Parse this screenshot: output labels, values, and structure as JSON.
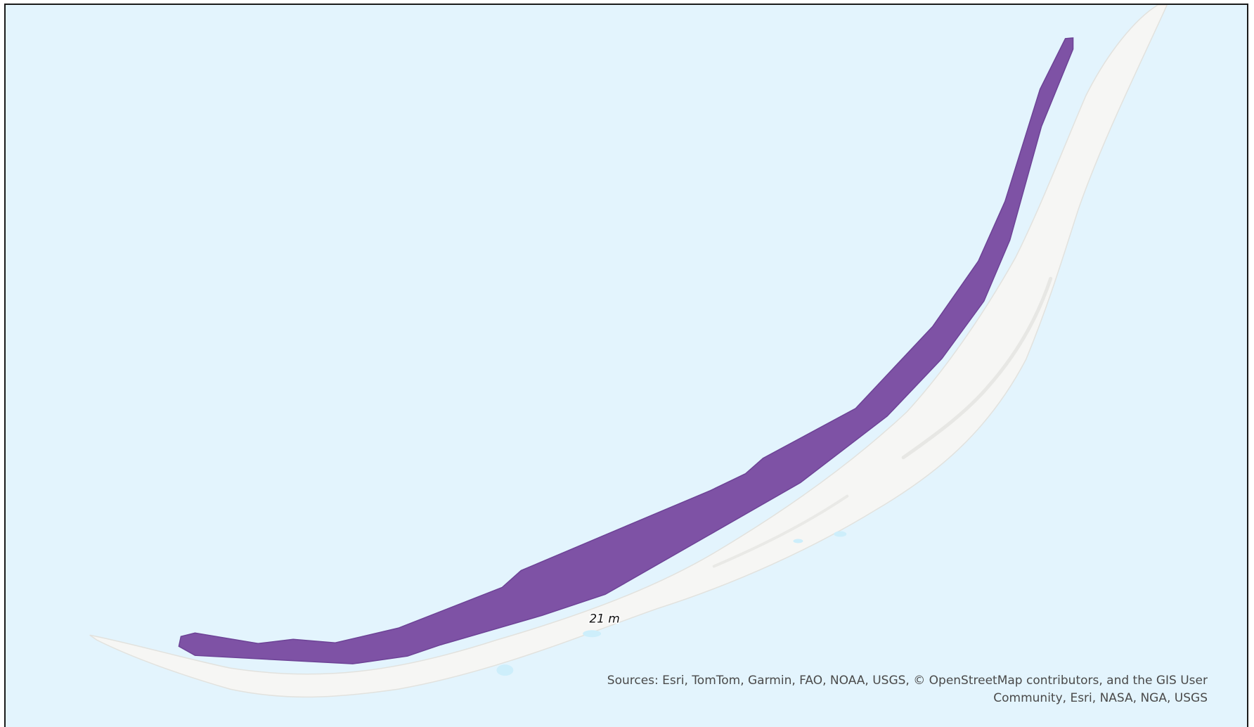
{
  "map": {
    "depth_label": "21 m",
    "attribution": "Sources: Esri, TomTom, Garmin, FAO, NOAA, USGS, © OpenStreetMap contributors, and the GIS User Community, Esri, NASA, NGA, USGS"
  },
  "colors": {
    "water": "#e3f4fd",
    "land": "#f6f6f4",
    "depth_zone": "#7e52a5",
    "frame": "#1a1a1a"
  },
  "layers": [
    {
      "name": "basemap-water",
      "icon": "none"
    },
    {
      "name": "barrier-island-land",
      "icon": "none"
    },
    {
      "name": "depth-zone-polygon",
      "icon": "none"
    }
  ]
}
